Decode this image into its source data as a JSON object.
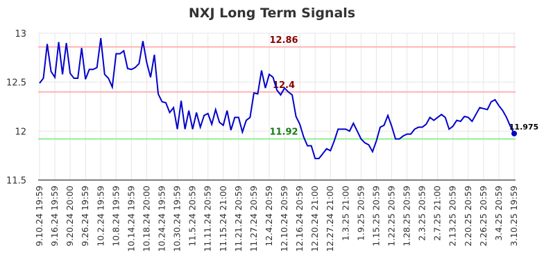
{
  "chart_data": {
    "type": "line",
    "title": "NXJ Long Term Signals",
    "categories": [
      "9.10.24 19:59",
      null,
      null,
      null,
      "9.16.24 19:59",
      null,
      null,
      null,
      "9.20.24 20:00",
      null,
      null,
      null,
      "9.26.24 19:59",
      null,
      null,
      null,
      "10.2.24 19:59",
      null,
      null,
      null,
      "10.8.24 19:59",
      null,
      null,
      null,
      "10.14.24 19:59",
      null,
      null,
      null,
      "10.18.24 20:00",
      null,
      null,
      null,
      "10.24.24 19:59",
      null,
      null,
      null,
      "10.30.24 19:59",
      null,
      null,
      null,
      "11.5.24 20:59",
      null,
      null,
      null,
      "11.11.24 20:59",
      null,
      null,
      null,
      "11.15.24 21:00",
      null,
      null,
      null,
      "11.21.24 20:59",
      null,
      null,
      null,
      "11.27.24 20:59",
      null,
      null,
      null,
      "12.4.24 20:59",
      null,
      null,
      null,
      "12.10.24 20:59",
      null,
      null,
      null,
      "12.16.24 20:59",
      null,
      null,
      null,
      "12.20.24 21:00",
      null,
      null,
      null,
      "12.27.24 21:00",
      null,
      null,
      null,
      "1.3.25 21:00",
      null,
      null,
      null,
      "1.9.25 20:59",
      null,
      null,
      null,
      "1.15.25 20:59",
      null,
      null,
      null,
      "1.22.25 20:59",
      null,
      null,
      null,
      "1.28.25 20:59",
      null,
      null,
      null,
      "2.3.25 20:59",
      null,
      null,
      null,
      "2.7.25 21:00",
      null,
      null,
      null,
      "2.13.25 20:59",
      null,
      null,
      null,
      "2.20.25 20:59",
      null,
      null,
      null,
      "2.26.25 20:59",
      null,
      null,
      null,
      "3.4.25 20:59",
      null,
      null,
      null,
      "3.10.25 19:59"
    ],
    "values": [
      12.49,
      12.54,
      12.89,
      12.61,
      12.55,
      12.91,
      12.58,
      12.9,
      12.59,
      12.54,
      12.54,
      12.85,
      12.53,
      12.63,
      12.63,
      12.65,
      12.95,
      12.58,
      12.54,
      12.45,
      12.79,
      12.79,
      12.82,
      12.64,
      12.63,
      12.65,
      12.69,
      12.92,
      12.7,
      12.55,
      12.78,
      12.38,
      12.3,
      12.29,
      12.19,
      12.24,
      12.02,
      12.31,
      12.02,
      12.21,
      12.02,
      12.19,
      12.04,
      12.16,
      12.18,
      12.07,
      12.22,
      12.09,
      12.06,
      12.21,
      12.01,
      12.14,
      12.14,
      11.99,
      12.11,
      12.14,
      12.39,
      12.38,
      12.62,
      12.44,
      12.58,
      12.55,
      12.42,
      12.37,
      12.44,
      12.4,
      12.37,
      12.15,
      12.07,
      11.94,
      11.85,
      11.85,
      11.72,
      11.72,
      11.77,
      11.82,
      11.8,
      11.9,
      12.02,
      12.02,
      12.02,
      12.0,
      12.08,
      12.0,
      11.92,
      11.88,
      11.86,
      11.79,
      11.9,
      12.04,
      12.06,
      12.16,
      12.05,
      11.92,
      11.92,
      11.95,
      11.97,
      11.97,
      12.02,
      12.04,
      12.04,
      12.07,
      12.14,
      12.11,
      12.14,
      12.17,
      12.14,
      12.02,
      12.05,
      12.11,
      12.1,
      12.15,
      12.14,
      12.1,
      12.17,
      12.24,
      12.23,
      12.22,
      12.3,
      12.32,
      12.26,
      12.21,
      12.14,
      12.05,
      11.975
    ],
    "color": "#0000cc",
    "ylim": [
      11.5,
      13
    ],
    "yticks": [
      11.5,
      12,
      12.5,
      13
    ],
    "grid": true,
    "hlines": [
      {
        "value": 12.86,
        "color": "#ffb3b3",
        "label_color": "#8b0000"
      },
      {
        "value": 12.4,
        "color": "#ffb3b3",
        "label_color": "#8b0000"
      },
      {
        "value": 11.92,
        "color": "#90ee90",
        "label_color": "#1a7a1a"
      }
    ]
  }
}
